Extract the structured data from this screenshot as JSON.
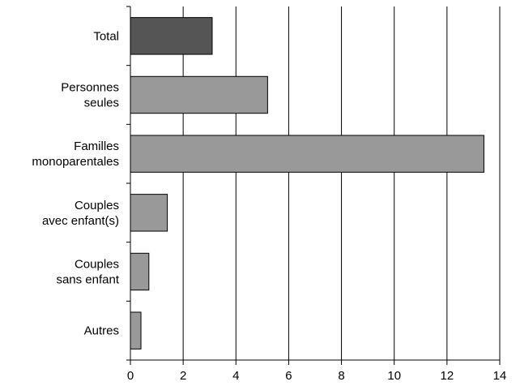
{
  "chart_data": {
    "type": "bar",
    "orientation": "horizontal",
    "title": "",
    "xlabel": "",
    "ylabel": "",
    "categories": [
      [
        "Total"
      ],
      [
        "Personnes",
        "seules"
      ],
      [
        "Familles",
        "monoparentales"
      ],
      [
        "Couples",
        "avec enfant(s)"
      ],
      [
        "Couples",
        "sans enfant"
      ],
      [
        "Autres"
      ]
    ],
    "values": [
      3.1,
      5.2,
      13.4,
      1.4,
      0.7,
      0.4
    ],
    "xlim": [
      0,
      14
    ],
    "xticks": [
      0,
      2,
      4,
      6,
      8,
      10,
      12,
      14
    ],
    "grid": "vertical",
    "legend": "none",
    "colors": {
      "highlight": "#555555",
      "bar": "#999999",
      "edge": "#000000",
      "grid": "#000000"
    }
  }
}
